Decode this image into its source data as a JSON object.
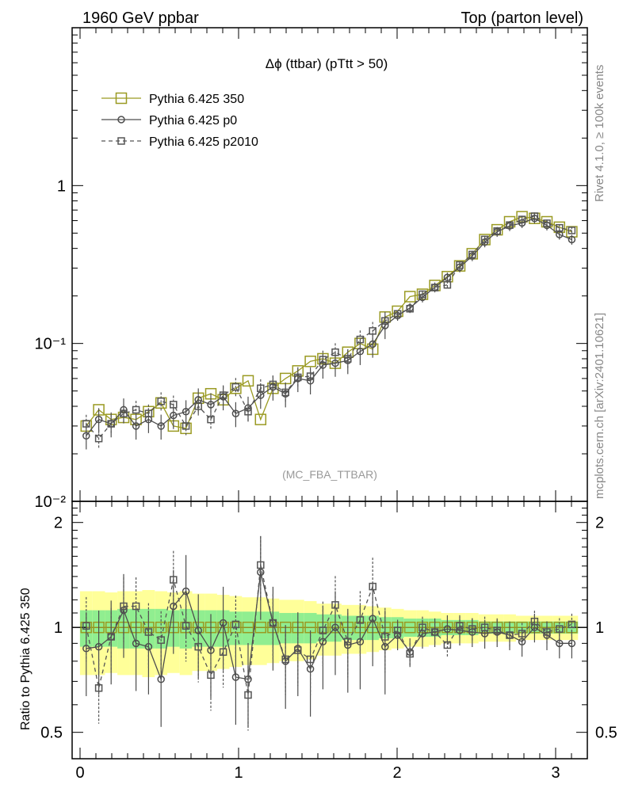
{
  "header": {
    "energy_label": "1960 GeV ppbar",
    "process_label": "Top (parton level)",
    "rivet_label": "Rivet 4.1.0, ≥ 100k events",
    "source_label": "mcplots.cern.ch [arXiv:2401.10621]"
  },
  "chart_data": {
    "type": "line",
    "title": "Δϕ (ttbar) (pTtt > 50)",
    "analysis_label": "(MC_FBA_TTBAR)",
    "xlabel": "",
    "ylabel_main": "",
    "ylabel_ratio": "Ratio to Pythia 6.425 350",
    "xlim": [
      -0.05,
      3.2
    ],
    "ylim_main": [
      0.01,
      10
    ],
    "yscale_main": "log",
    "ylim_ratio": [
      0.42,
      2.3
    ],
    "yscale_ratio": "log",
    "x_ticks": [
      "0",
      "1",
      "2",
      "3"
    ],
    "x_tick_values": [
      0,
      1,
      2,
      3
    ],
    "y_ticks_main": [
      "10⁻²",
      "10⁻¹",
      "1"
    ],
    "y_tick_values_main": [
      0.01,
      0.1,
      1
    ],
    "y_ticks_ratio": [
      "0.5",
      "1",
      "2"
    ],
    "y_tick_values_ratio": [
      0.5,
      1,
      2
    ],
    "legend_position": "top-left",
    "band_colors": {
      "inner": "#90ee90",
      "outer": "#ffff99"
    },
    "x": [
      0.039,
      0.118,
      0.196,
      0.275,
      0.353,
      0.432,
      0.511,
      0.589,
      0.668,
      0.746,
      0.825,
      0.903,
      0.982,
      1.06,
      1.139,
      1.217,
      1.296,
      1.374,
      1.453,
      1.532,
      1.61,
      1.689,
      1.767,
      1.846,
      1.924,
      2.003,
      2.081,
      2.16,
      2.238,
      2.317,
      2.395,
      2.474,
      2.553,
      2.631,
      2.71,
      2.788,
      2.867,
      2.945,
      3.024,
      3.102
    ],
    "series": [
      {
        "name": "Pythia 6.425 350",
        "color": "#9a9a22",
        "marker": "square-large",
        "linestyle": "solid",
        "values": [
          0.03,
          0.038,
          0.033,
          0.034,
          0.033,
          0.037,
          0.042,
          0.03,
          0.029,
          0.045,
          0.048,
          0.044,
          0.052,
          0.058,
          0.033,
          0.052,
          0.06,
          0.067,
          0.077,
          0.08,
          0.075,
          0.088,
          0.1,
          0.092,
          0.147,
          0.16,
          0.198,
          0.205,
          0.233,
          0.265,
          0.31,
          0.37,
          0.455,
          0.525,
          0.59,
          0.635,
          0.62,
          0.59,
          0.545,
          0.51
        ]
      },
      {
        "name": "Pythia 6.425 p0",
        "color": "#4d4d4d",
        "marker": "circle",
        "linestyle": "solid",
        "values": [
          0.026,
          0.033,
          0.031,
          0.038,
          0.03,
          0.033,
          0.03,
          0.035,
          0.037,
          0.044,
          0.041,
          0.046,
          0.036,
          0.039,
          0.047,
          0.053,
          0.048,
          0.06,
          0.058,
          0.073,
          0.075,
          0.078,
          0.089,
          0.099,
          0.13,
          0.15,
          0.168,
          0.196,
          0.227,
          0.262,
          0.304,
          0.358,
          0.438,
          0.51,
          0.555,
          0.58,
          0.62,
          0.56,
          0.49,
          0.455
        ]
      },
      {
        "name": "Pythia 6.425 p2010",
        "color": "#555555",
        "marker": "square-small",
        "linestyle": "dashed",
        "values": [
          0.031,
          0.025,
          0.031,
          0.036,
          0.038,
          0.036,
          0.043,
          0.041,
          0.03,
          0.04,
          0.033,
          0.047,
          0.053,
          0.037,
          0.052,
          0.055,
          0.049,
          0.061,
          0.062,
          0.079,
          0.088,
          0.08,
          0.106,
          0.12,
          0.139,
          0.154,
          0.166,
          0.205,
          0.226,
          0.235,
          0.314,
          0.366,
          0.456,
          0.515,
          0.562,
          0.61,
          0.64,
          0.577,
          0.54,
          0.52
        ]
      }
    ],
    "ratios": [
      {
        "name": "Pythia 6.425 350",
        "values": [
          1.0,
          1.0,
          1.0,
          1.0,
          1.0,
          1.0,
          1.0,
          1.0,
          1.0,
          1.0,
          1.0,
          1.0,
          1.0,
          1.0,
          1.0,
          1.0,
          1.0,
          1.0,
          1.0,
          1.0,
          1.0,
          1.0,
          1.0,
          1.0,
          1.0,
          1.0,
          1.0,
          1.0,
          1.0,
          1.0,
          1.0,
          1.0,
          1.0,
          1.0,
          1.0,
          1.0,
          1.0,
          1.0,
          1.0,
          1.0
        ]
      },
      {
        "name": "Pythia 6.425 p0",
        "values": [
          0.87,
          0.88,
          0.94,
          1.12,
          0.9,
          0.88,
          0.71,
          1.15,
          1.27,
          0.98,
          0.86,
          1.03,
          0.72,
          0.71,
          1.44,
          1.03,
          0.8,
          0.87,
          0.76,
          0.91,
          1.0,
          0.89,
          0.91,
          1.06,
          0.88,
          0.95,
          0.85,
          0.96,
          0.97,
          0.99,
          0.98,
          0.97,
          0.96,
          0.97,
          0.95,
          0.91,
          1.0,
          0.95,
          0.9,
          0.9
        ]
      },
      {
        "name": "Pythia 6.425 p2010",
        "values": [
          1.01,
          0.67,
          0.94,
          1.15,
          1.15,
          0.97,
          0.92,
          1.37,
          1.01,
          0.88,
          0.73,
          0.85,
          1.02,
          0.64,
          1.51,
          1.03,
          0.81,
          0.86,
          0.81,
          0.98,
          1.16,
          0.91,
          1.05,
          1.31,
          0.94,
          0.98,
          0.84,
          1.0,
          0.97,
          0.89,
          1.01,
          0.99,
          1.0,
          0.98,
          0.95,
          0.96,
          1.04,
          0.97,
          0.99,
          1.02
        ]
      }
    ],
    "band_inner": [
      0.12,
      0.12,
      0.12,
      0.13,
      0.13,
      0.13,
      0.13,
      0.12,
      0.13,
      0.12,
      0.12,
      0.12,
      0.11,
      0.11,
      0.11,
      0.11,
      0.1,
      0.1,
      0.1,
      0.09,
      0.09,
      0.08,
      0.08,
      0.08,
      0.07,
      0.07,
      0.06,
      0.06,
      0.06,
      0.05,
      0.05,
      0.05,
      0.04,
      0.04,
      0.04,
      0.04,
      0.04,
      0.04,
      0.04,
      0.04
    ],
    "band_outer": [
      0.27,
      0.27,
      0.26,
      0.27,
      0.27,
      0.28,
      0.27,
      0.26,
      0.27,
      0.25,
      0.25,
      0.24,
      0.23,
      0.22,
      0.22,
      0.21,
      0.2,
      0.2,
      0.19,
      0.17,
      0.17,
      0.16,
      0.16,
      0.15,
      0.14,
      0.13,
      0.12,
      0.12,
      0.11,
      0.1,
      0.1,
      0.1,
      0.09,
      0.09,
      0.09,
      0.08,
      0.08,
      0.08,
      0.08,
      0.08
    ]
  }
}
